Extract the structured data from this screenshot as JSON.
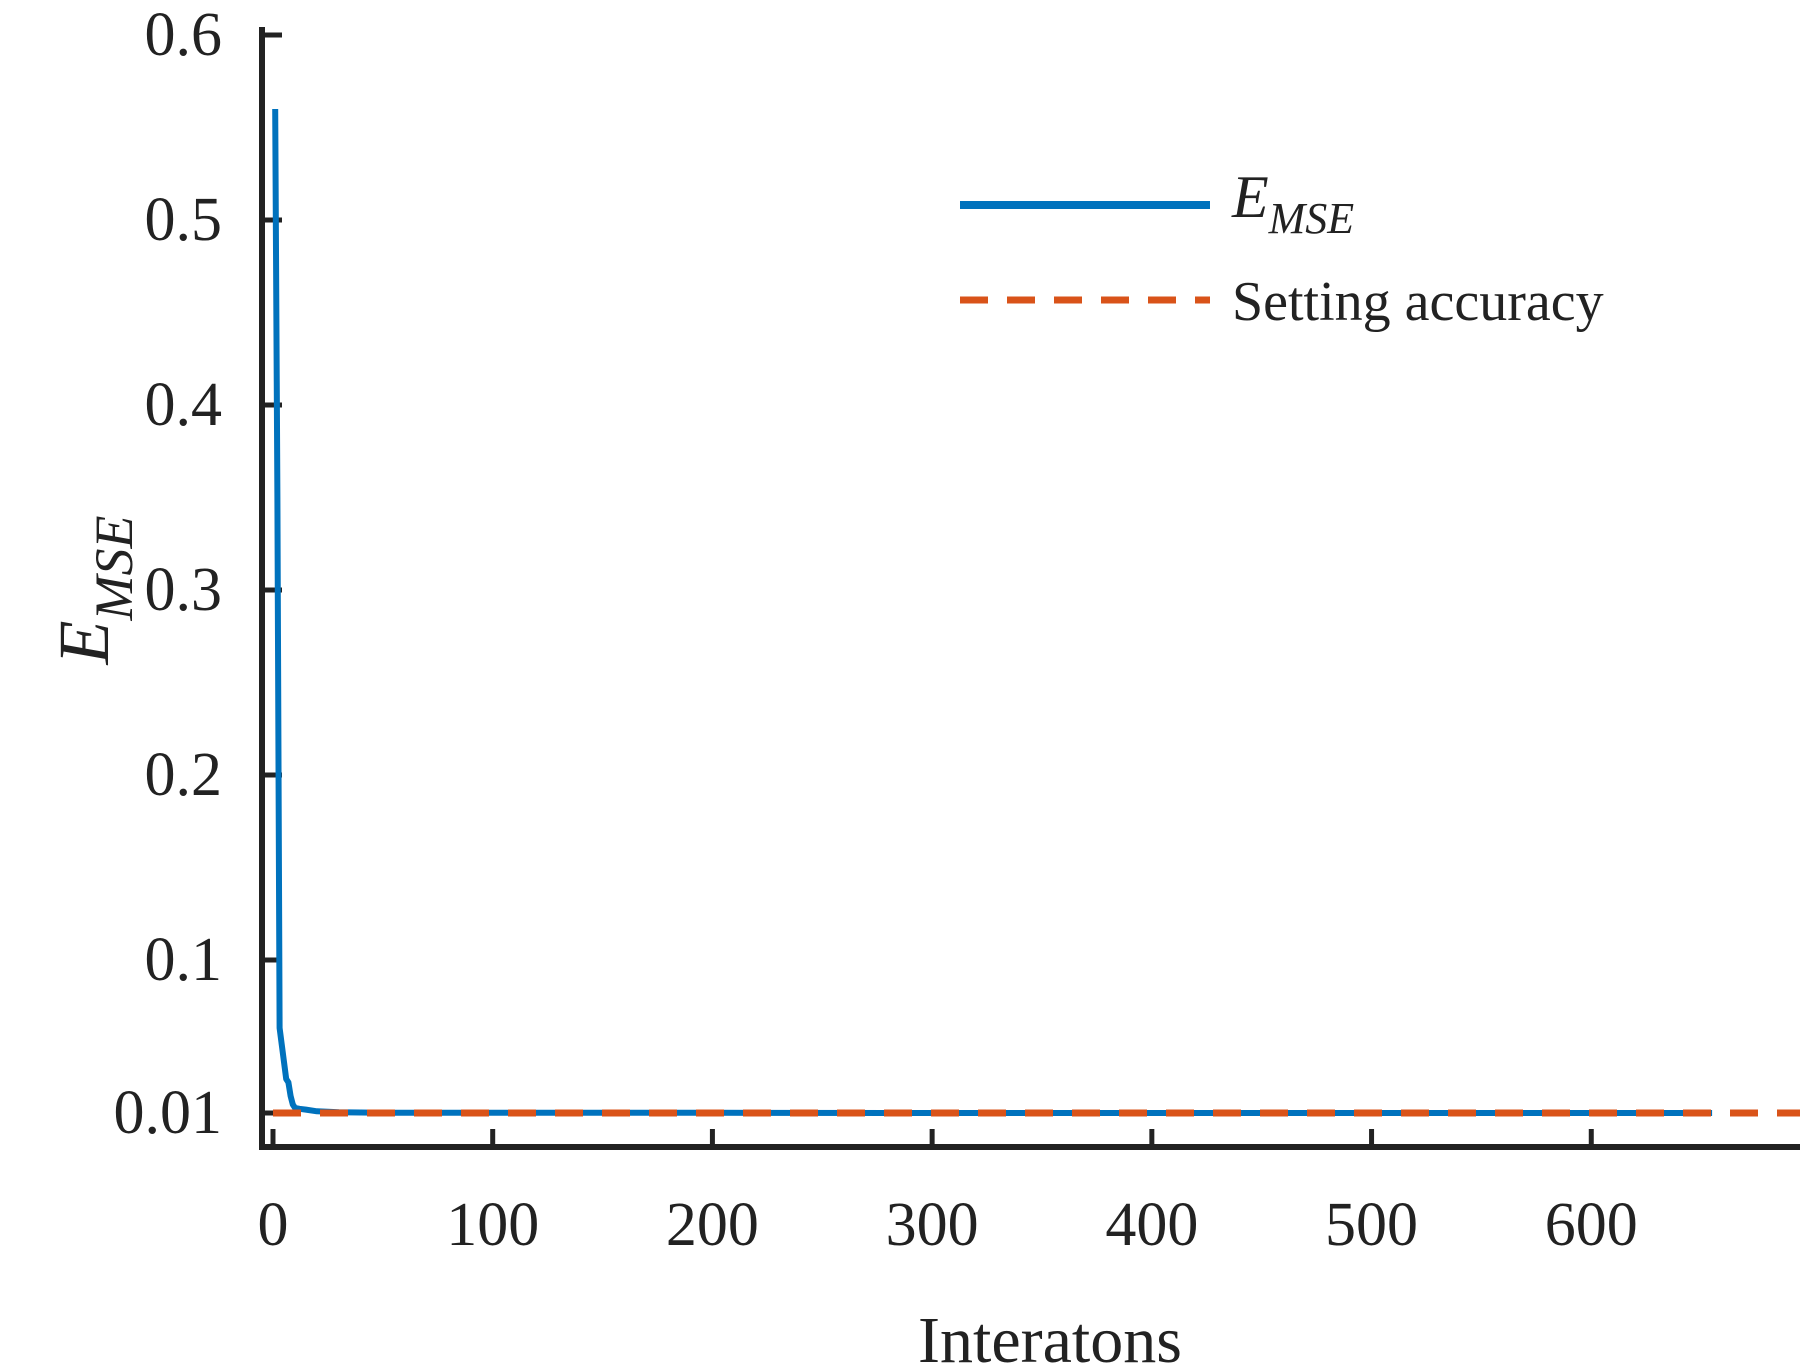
{
  "chart_data": {
    "type": "line",
    "xlabel": "Interatons",
    "ylabel": {
      "main": "E",
      "sub": "MSE"
    },
    "xlim": [
      -5,
      695
    ],
    "x_ticks": [
      0,
      100,
      200,
      300,
      400,
      500,
      600
    ],
    "x_tick_labels": [
      "0",
      "100",
      "200",
      "300",
      "400",
      "500",
      "600"
    ],
    "y_axis_ticks": [
      0.01,
      0.1,
      0.2,
      0.3,
      0.4,
      0.5,
      0.6
    ],
    "y_tick_labels": [
      "0.01",
      "0.1",
      "0.2",
      "0.3",
      "0.4",
      "0.5",
      "0.6"
    ],
    "y_axis_note": "non-uniform spacing: 0.01 placed just above the axis floor; 0.1 to 0.6 evenly spaced",
    "grid": false,
    "legend_placement": "top-right",
    "series": [
      {
        "name": {
          "main": "E",
          "sub": "MSE"
        },
        "style": "solid",
        "color": "#0072BD",
        "x": [
          1,
          2,
          3,
          4,
          5,
          6,
          7,
          8,
          9,
          10,
          12,
          15,
          20,
          30,
          50,
          100,
          200,
          300,
          400,
          500,
          600,
          655
        ],
        "y": [
          0.56,
          0.35,
          0.06,
          0.05,
          0.04,
          0.03,
          0.028,
          0.02,
          0.015,
          0.013,
          0.0125,
          0.012,
          0.011,
          0.0105,
          0.0102,
          0.0101,
          0.0101,
          0.01,
          0.01,
          0.01,
          0.01,
          0.01
        ]
      },
      {
        "name": "Setting accuracy",
        "style": "dashed",
        "color": "#D95319",
        "x": [
          0,
          695
        ],
        "y": [
          0.01,
          0.01
        ]
      }
    ]
  }
}
